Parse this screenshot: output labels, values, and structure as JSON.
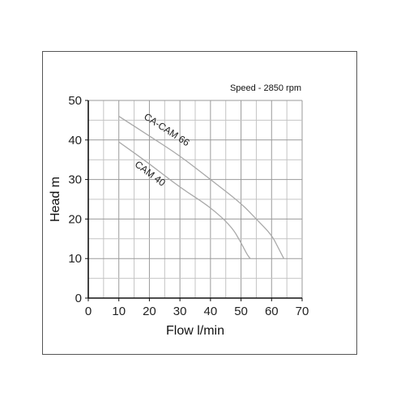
{
  "chart_data": {
    "type": "line",
    "annotation": "Speed - 2850 rpm",
    "xlabel": "Flow l/min",
    "ylabel": "Head m",
    "xlim": [
      0,
      70
    ],
    "ylim": [
      0,
      50
    ],
    "xticks": [
      0,
      10,
      20,
      30,
      40,
      50,
      60,
      70
    ],
    "yticks": [
      0,
      10,
      20,
      30,
      40,
      50
    ],
    "grid": true,
    "series": [
      {
        "name": "CA-CAM 66",
        "color": "#a8a8a8",
        "x": [
          10,
          20,
          30,
          40,
          50,
          55,
          60,
          62,
          64
        ],
        "y": [
          46,
          41,
          36,
          30,
          24,
          20,
          16,
          13,
          10
        ]
      },
      {
        "name": "CAM 40",
        "color": "#a8a8a8",
        "x": [
          10,
          20,
          30,
          40,
          47,
          50,
          52,
          53
        ],
        "y": [
          39.5,
          34,
          28,
          23,
          18,
          14,
          11,
          10
        ]
      }
    ]
  }
}
